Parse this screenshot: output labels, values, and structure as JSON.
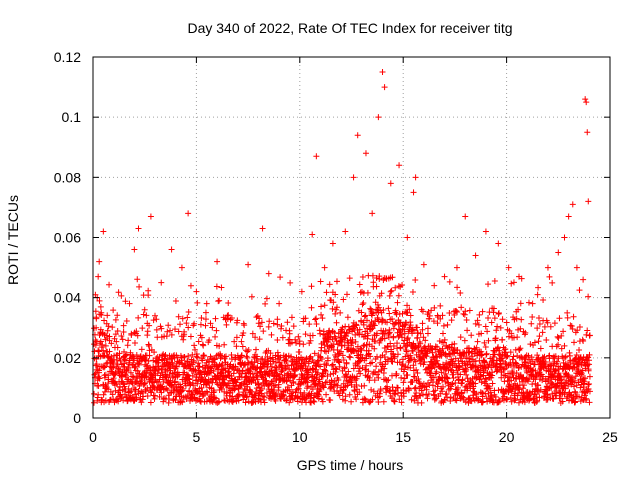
{
  "chart_data": {
    "type": "scatter",
    "title": "Day 340 of 2022, Rate Of TEC Index for receiver titg",
    "xlabel": "GPS time / hours",
    "ylabel": "ROTI / TECUs",
    "xlim": [
      0,
      25
    ],
    "ylim": [
      0,
      0.12
    ],
    "x_ticks": [
      0,
      5,
      10,
      15,
      20,
      25
    ],
    "x_tick_labels": [
      "0",
      "5",
      "10",
      "15",
      "20",
      "25"
    ],
    "y_ticks": [
      0,
      0.02,
      0.04,
      0.06,
      0.08,
      0.1,
      0.12
    ],
    "y_tick_labels": [
      "0",
      "0.02",
      "0.04",
      "0.06",
      "0.08",
      "0.1",
      "0.12"
    ],
    "grid": true,
    "marker": "+",
    "color": "#ff0000",
    "series": [
      {
        "name": "ROTI",
        "points": [
          [
            0.05,
            0.008
          ],
          [
            0.15,
            0.03
          ],
          [
            0.25,
            0.047
          ],
          [
            0.3,
            0.052
          ],
          [
            0.4,
            0.035
          ],
          [
            0.5,
            0.062
          ],
          [
            0.6,
            0.011
          ],
          [
            1.0,
            0.018
          ],
          [
            1.5,
            0.022
          ],
          [
            2.0,
            0.056
          ],
          [
            2.2,
            0.063
          ],
          [
            2.5,
            0.036
          ],
          [
            2.8,
            0.067
          ],
          [
            3.3,
            0.045
          ],
          [
            3.8,
            0.056
          ],
          [
            4.3,
            0.05
          ],
          [
            4.6,
            0.068
          ],
          [
            5.0,
            0.042
          ],
          [
            5.5,
            0.038
          ],
          [
            6.0,
            0.052
          ],
          [
            6.5,
            0.034
          ],
          [
            7.5,
            0.051
          ],
          [
            8.2,
            0.063
          ],
          [
            8.5,
            0.048
          ],
          [
            9.0,
            0.038
          ],
          [
            9.5,
            0.029
          ],
          [
            10.1,
            0.042
          ],
          [
            10.6,
            0.061
          ],
          [
            10.8,
            0.087
          ],
          [
            11.2,
            0.05
          ],
          [
            11.6,
            0.058
          ],
          [
            12.2,
            0.062
          ],
          [
            12.6,
            0.08
          ],
          [
            12.8,
            0.094
          ],
          [
            13.2,
            0.088
          ],
          [
            13.5,
            0.068
          ],
          [
            13.8,
            0.1
          ],
          [
            14.0,
            0.115
          ],
          [
            14.1,
            0.11
          ],
          [
            14.4,
            0.078
          ],
          [
            14.8,
            0.084
          ],
          [
            15.2,
            0.06
          ],
          [
            15.5,
            0.075
          ],
          [
            15.6,
            0.08
          ],
          [
            16.0,
            0.051
          ],
          [
            16.5,
            0.044
          ],
          [
            17.0,
            0.047
          ],
          [
            17.6,
            0.05
          ],
          [
            18.0,
            0.067
          ],
          [
            18.5,
            0.054
          ],
          [
            19.0,
            0.062
          ],
          [
            19.6,
            0.058
          ],
          [
            20.1,
            0.05
          ],
          [
            20.6,
            0.047
          ],
          [
            21.5,
            0.041
          ],
          [
            22.0,
            0.05
          ],
          [
            22.5,
            0.055
          ],
          [
            22.8,
            0.06
          ],
          [
            23.0,
            0.067
          ],
          [
            23.2,
            0.071
          ],
          [
            23.4,
            0.05
          ],
          [
            23.7,
            0.046
          ],
          [
            23.8,
            0.106
          ],
          [
            23.85,
            0.105
          ],
          [
            23.9,
            0.095
          ],
          [
            23.95,
            0.072
          ]
        ],
        "density_note": "dense band of points between 0.005 and ~0.035 over 0–24 h"
      }
    ]
  }
}
